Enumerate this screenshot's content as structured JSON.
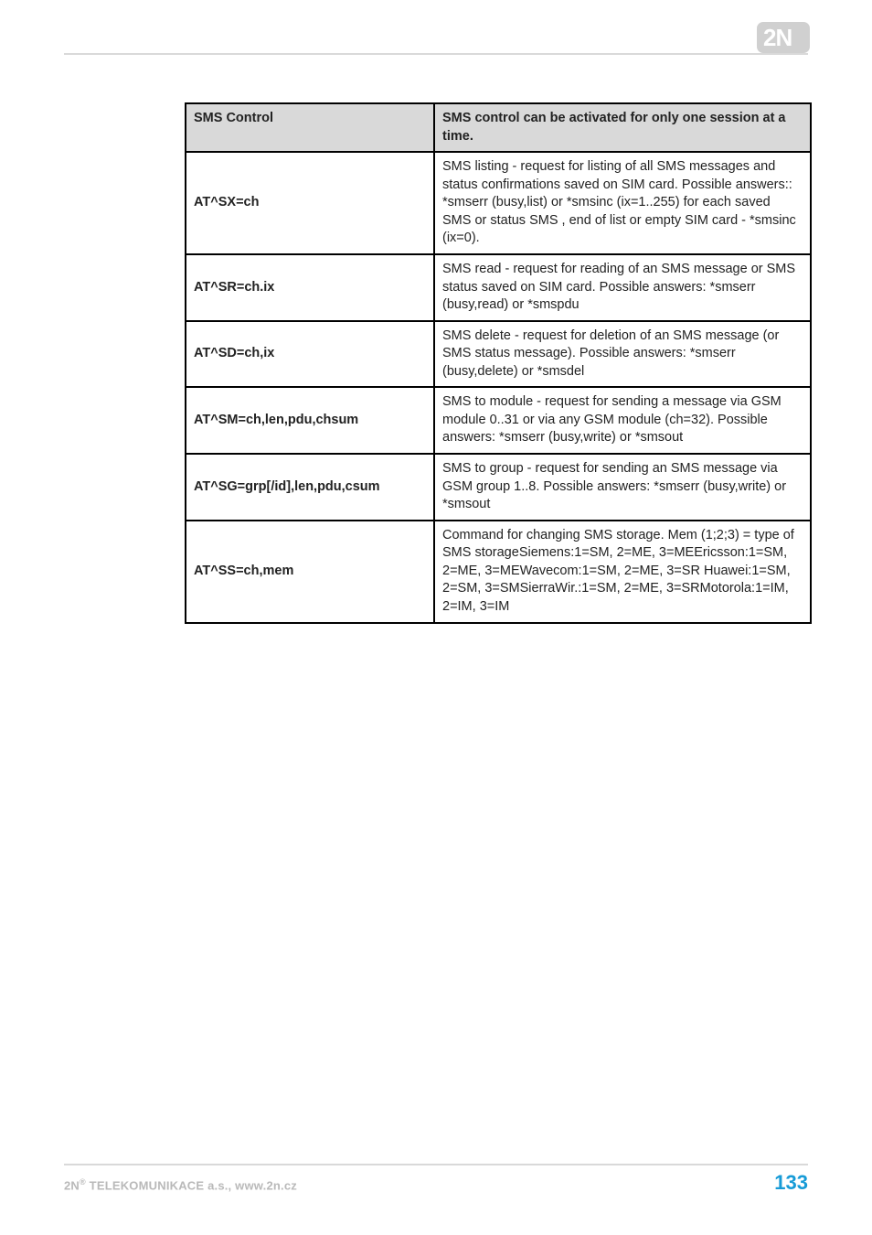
{
  "logo": {
    "bg_fill": "#d0d0d0",
    "text_fill": "#ffffff",
    "corner_radius": 7
  },
  "table": {
    "header": {
      "left": "SMS Control",
      "right": "SMS control can be activated for only one session at a time."
    },
    "rows": [
      {
        "cmd": "AT^SX=ch",
        "desc": "SMS listing - request for listing of all SMS messages and status confirmations saved on SIM card. Possible answers:: *smserr (busy,list) or *smsinc (ix=1..255) for each saved SMS or status SMS , end of list or empty SIM card - *smsinc (ix=0)."
      },
      {
        "cmd": "AT^SR=ch.ix",
        "desc": "SMS read - request for reading of an SMS message or SMS status saved on SIM card. Possible answers: *smserr (busy,read) or *smspdu"
      },
      {
        "cmd": "AT^SD=ch,ix",
        "desc": "SMS delete - request for deletion of an SMS message (or SMS status message). Possible answers: *smserr (busy,delete) or *smsdel"
      },
      {
        "cmd": "AT^SM=ch,len,pdu,chsum",
        "desc": "SMS to module - request for sending a message via GSM module 0..31 or via any GSM module (ch=32). Possible answers: *smserr (busy,write) or *smsout"
      },
      {
        "cmd": "AT^SG=grp[/id],len,pdu,csum",
        "desc": "SMS to group - request for sending an SMS message via GSM group 1..8. Possible answers: *smserr (busy,write) or *smsout"
      },
      {
        "cmd": "AT^SS=ch,mem",
        "desc": "Command for changing SMS storage. Mem (1;2;3) = type of SMS storageSiemens:1=SM, 2=ME, 3=MEEricsson:1=SM, 2=ME, 3=MEWavecom:1=SM, 2=ME, 3=SR Huawei:1=SM, 2=SM, 3=SMSierraWir.:1=SM, 2=ME, 3=SRMotorola:1=IM, 2=IM, 3=IM"
      }
    ]
  },
  "footer": {
    "company_prefix": "2N",
    "company_rest": " TELEKOMUNIKACE a.s., www.2n.cz",
    "page_number": "133",
    "left_color": "#b9b9b9",
    "right_color": "#179bd7"
  }
}
